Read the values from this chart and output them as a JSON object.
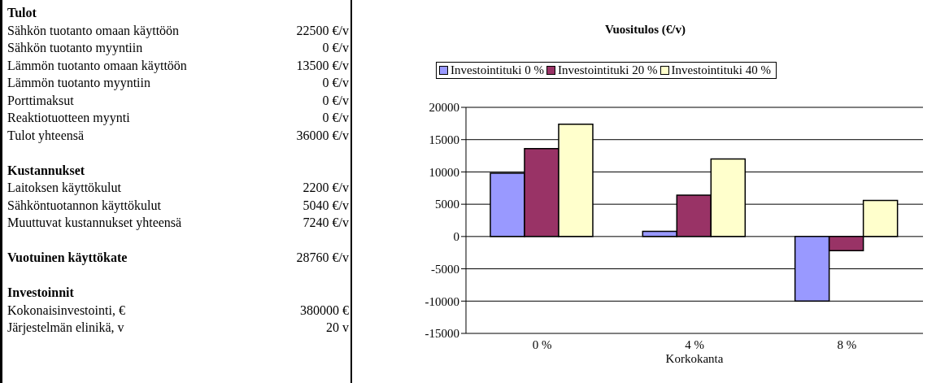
{
  "chart_data": [
    {
      "type": "other",
      "annotations": [
        "Tulot",
        "Sähkön tuotanto omaan käyttöön",
        "22500 €/v",
        "Sähkön tuotanto myyntiin",
        "0 €/v",
        "Lämmön tuotanto omaan käyttöön",
        "13500 €/v",
        "Lämmön tuotanto myyntiin",
        "0 €/v",
        "Porttimaksut",
        "0 €/v",
        "Reaktiotuotteen myynti",
        "0 €/v",
        "Tulot yhteensä",
        "36000 €/v",
        "Kustannukset",
        "Laitoksen käyttökulut",
        "2200 €/v",
        "Sähköntuotannon käyttökulut",
        "5040 €/v",
        "Muuttuvat kustannukset yhteensä",
        "7240 €/v",
        "Vuotuinen käyttökate",
        "28760 €/v",
        "Investoinnit",
        "Kokonaisinvestointi, €",
        "380000 €",
        "Järjestelmän elinikä, v",
        "20 v"
      ]
    },
    {
      "type": "bar",
      "title": "Vuositulos (€/v)",
      "xlabel": "Korkokanta",
      "categories": [
        "0 %",
        "4 %",
        "8 %"
      ],
      "series": [
        {
          "name": "Investointituki 0 %",
          "color": "#9999ff",
          "values": [
            9800,
            800,
            -10000
          ]
        },
        {
          "name": "Investointituki 20 %",
          "color": "#993366",
          "values": [
            13600,
            6400,
            -2200
          ]
        },
        {
          "name": "Investointituki 40 %",
          "color": "#ffffcc",
          "values": [
            17400,
            12000,
            5600
          ]
        }
      ],
      "ylim": [
        -15000,
        20000
      ],
      "yticks": [
        -15000,
        -10000,
        -5000,
        0,
        5000,
        10000,
        15000,
        20000
      ],
      "grid": "y",
      "legend": "top"
    }
  ]
}
